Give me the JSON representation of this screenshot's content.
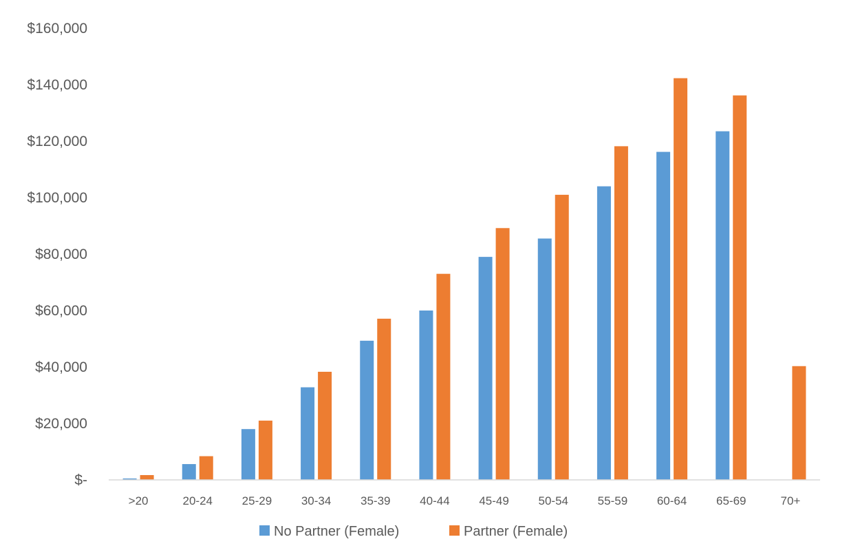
{
  "chart_data": {
    "type": "bar",
    "categories": [
      ">20",
      "20-24",
      "25-29",
      "30-34",
      "35-39",
      "40-44",
      "45-49",
      "50-54",
      "55-59",
      "60-64",
      "65-69",
      "70+"
    ],
    "series": [
      {
        "name": "No Partner (Female)",
        "color": "#5b9bd5",
        "values": [
          500,
          5600,
          18000,
          32800,
          49300,
          60000,
          79000,
          85500,
          104000,
          116200,
          123500,
          0
        ]
      },
      {
        "name": "Partner (Female)",
        "color": "#ed7d31",
        "values": [
          1700,
          8400,
          21000,
          38300,
          57100,
          73000,
          89200,
          101000,
          118200,
          142300,
          136200,
          40300
        ]
      }
    ],
    "ylim": [
      0,
      160000
    ],
    "yticks": [
      0,
      20000,
      40000,
      60000,
      80000,
      100000,
      120000,
      140000,
      160000
    ],
    "ytick_labels": [
      "$-",
      "$20,000",
      "$40,000",
      "$60,000",
      "$80,000",
      "$100,000",
      "$120,000",
      "$140,000",
      "$160,000"
    ],
    "gridlines": false,
    "legend_position": "bottom",
    "title": "",
    "xlabel": "",
    "ylabel": ""
  }
}
